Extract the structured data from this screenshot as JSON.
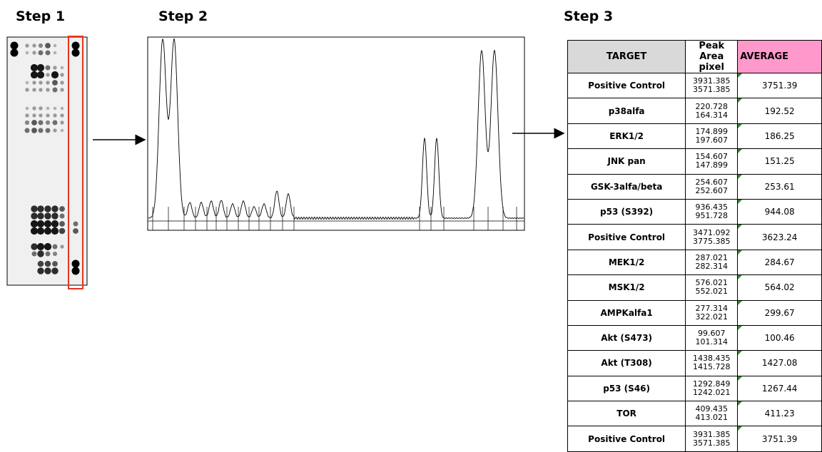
{
  "steps": [
    "Step 1",
    "Step 2",
    "Step 3"
  ],
  "table": {
    "headers": [
      "TARGET",
      "Peak Area pixel",
      "AVERAGE"
    ],
    "rows": [
      [
        "Positive Control",
        "3931.385",
        "3571.385",
        "3751.39"
      ],
      [
        "p38alfa",
        "220.728",
        "164.314",
        "192.52"
      ],
      [
        "ERK1/2",
        "174.899",
        "197.607",
        "186.25"
      ],
      [
        "JNK pan",
        "154.607",
        "147.899",
        "151.25"
      ],
      [
        "GSK-3alfa/beta",
        "254.607",
        "252.607",
        "253.61"
      ],
      [
        "p53 (S392)",
        "936.435",
        "951.728",
        "944.08"
      ],
      [
        "Positive Control",
        "3471.092",
        "3775.385",
        "3623.24"
      ],
      [
        "MEK1/2",
        "287.021",
        "282.314",
        "284.67"
      ],
      [
        "MSK1/2",
        "576.021",
        "552.021",
        "564.02"
      ],
      [
        "AMPKalfa1",
        "277.314",
        "322.021",
        "299.67"
      ],
      [
        "Akt (S473)",
        "99.607",
        "101.314",
        "100.46"
      ],
      [
        "Akt (T308)",
        "1438.435",
        "1415.728",
        "1427.08"
      ],
      [
        "p53 (S46)",
        "1292.849",
        "1242.021",
        "1267.44"
      ],
      [
        "TOR",
        "409.435",
        "413.021",
        "411.23"
      ],
      [
        "Positive Control",
        "3931.385",
        "3571.385",
        "3751.39"
      ]
    ]
  }
}
